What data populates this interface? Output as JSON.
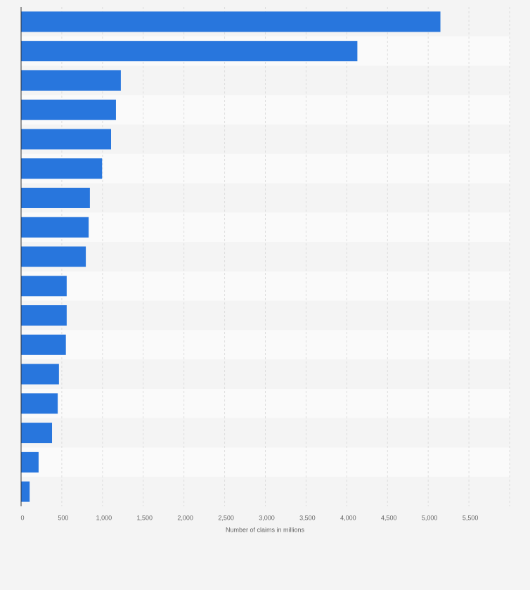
{
  "chart_data": {
    "type": "hbar",
    "categories": [
      null,
      null,
      null,
      null,
      null,
      null,
      null,
      null,
      null,
      null,
      null,
      null,
      null,
      null,
      null,
      null,
      null
    ],
    "values": [
      5150,
      4130,
      1225,
      1165,
      1105,
      995,
      845,
      830,
      795,
      560,
      560,
      550,
      465,
      450,
      380,
      215,
      105
    ],
    "color": "#2876dd",
    "xlabel": "Number of claims in millions",
    "xlim": [
      0,
      6000
    ],
    "xticks": [
      0,
      500,
      {
        "value": 1000,
        "label": "1,000"
      },
      {
        "value": 1500,
        "label": "1,500"
      },
      {
        "value": 2000,
        "label": "2,000"
      },
      {
        "value": 2500,
        "label": "2,500"
      },
      {
        "value": 3000,
        "label": "3,000"
      },
      {
        "value": 3500,
        "label": "3,500"
      },
      {
        "value": 4000,
        "label": "4,000"
      },
      {
        "value": 4500,
        "label": "4,500"
      },
      {
        "value": 5000,
        "label": "5,000"
      },
      {
        "value": 5500,
        "label": "5,500"
      }
    ],
    "grid": true
  }
}
